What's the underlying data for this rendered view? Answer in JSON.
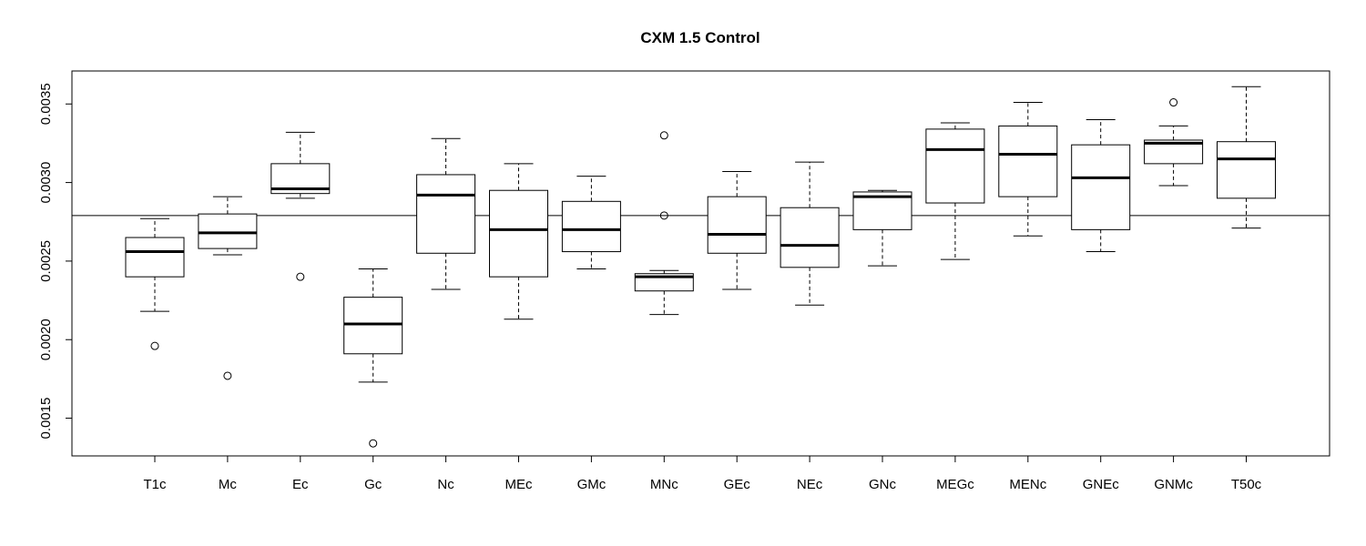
{
  "chart_data": {
    "type": "boxplot",
    "title": "CXM 1.5 Control",
    "xlabel": "",
    "ylabel": "",
    "ylim": [
      0.00126,
      0.00371
    ],
    "y_ticks": [
      {
        "value": 0.0015,
        "label": "0.0015"
      },
      {
        "value": 0.002,
        "label": "0.0020"
      },
      {
        "value": 0.0025,
        "label": "0.0025"
      },
      {
        "value": 0.003,
        "label": "0.0030"
      },
      {
        "value": 0.0035,
        "label": "0.0035"
      }
    ],
    "reference_line": 0.00279,
    "grid": false,
    "categories": [
      "T1c",
      "Mc",
      "Ec",
      "Gc",
      "Nc",
      "MEc",
      "GMc",
      "MNc",
      "GEc",
      "NEc",
      "GNc",
      "MEGc",
      "MENc",
      "GNEc",
      "GNMc",
      "T50c"
    ],
    "boxes": [
      {
        "category": "T1c",
        "whisker_low": 0.00218,
        "q1": 0.0024,
        "median": 0.00256,
        "q3": 0.00265,
        "whisker_high": 0.00277,
        "outliers": [
          0.00196
        ]
      },
      {
        "category": "Mc",
        "whisker_low": 0.00254,
        "q1": 0.00258,
        "median": 0.00268,
        "q3": 0.0028,
        "whisker_high": 0.00291,
        "outliers": [
          0.00177
        ]
      },
      {
        "category": "Ec",
        "whisker_low": 0.0029,
        "q1": 0.00293,
        "median": 0.00296,
        "q3": 0.00312,
        "whisker_high": 0.00332,
        "outliers": [
          0.0024
        ]
      },
      {
        "category": "Gc",
        "whisker_low": 0.00173,
        "q1": 0.00191,
        "median": 0.0021,
        "q3": 0.00227,
        "whisker_high": 0.00245,
        "outliers": [
          0.00134
        ]
      },
      {
        "category": "Nc",
        "whisker_low": 0.00232,
        "q1": 0.00255,
        "median": 0.00292,
        "q3": 0.00305,
        "whisker_high": 0.00328,
        "outliers": []
      },
      {
        "category": "MEc",
        "whisker_low": 0.00213,
        "q1": 0.0024,
        "median": 0.0027,
        "q3": 0.00295,
        "whisker_high": 0.00312,
        "outliers": []
      },
      {
        "category": "GMc",
        "whisker_low": 0.00245,
        "q1": 0.00256,
        "median": 0.0027,
        "q3": 0.00288,
        "whisker_high": 0.00304,
        "outliers": []
      },
      {
        "category": "MNc",
        "whisker_low": 0.00216,
        "q1": 0.00231,
        "median": 0.0024,
        "q3": 0.00242,
        "whisker_high": 0.00244,
        "outliers": [
          0.00279,
          0.0033
        ]
      },
      {
        "category": "GEc",
        "whisker_low": 0.00232,
        "q1": 0.00255,
        "median": 0.00267,
        "q3": 0.00291,
        "whisker_high": 0.00307,
        "outliers": []
      },
      {
        "category": "NEc",
        "whisker_low": 0.00222,
        "q1": 0.00246,
        "median": 0.0026,
        "q3": 0.00284,
        "whisker_high": 0.00313,
        "outliers": []
      },
      {
        "category": "GNc",
        "whisker_low": 0.00247,
        "q1": 0.0027,
        "median": 0.00291,
        "q3": 0.00294,
        "whisker_high": 0.00295,
        "outliers": []
      },
      {
        "category": "MEGc",
        "whisker_low": 0.00251,
        "q1": 0.00287,
        "median": 0.00321,
        "q3": 0.00334,
        "whisker_high": 0.00338,
        "outliers": []
      },
      {
        "category": "MENc",
        "whisker_low": 0.00266,
        "q1": 0.00291,
        "median": 0.00318,
        "q3": 0.00336,
        "whisker_high": 0.00351,
        "outliers": []
      },
      {
        "category": "GNEc",
        "whisker_low": 0.00256,
        "q1": 0.0027,
        "median": 0.00303,
        "q3": 0.00324,
        "whisker_high": 0.0034,
        "outliers": []
      },
      {
        "category": "GNMc",
        "whisker_low": 0.00298,
        "q1": 0.00312,
        "median": 0.00325,
        "q3": 0.00327,
        "whisker_high": 0.00336,
        "outliers": [
          0.00351
        ]
      },
      {
        "category": "T50c",
        "whisker_low": 0.00271,
        "q1": 0.0029,
        "median": 0.00315,
        "q3": 0.00326,
        "whisker_high": 0.00361,
        "outliers": []
      }
    ]
  }
}
